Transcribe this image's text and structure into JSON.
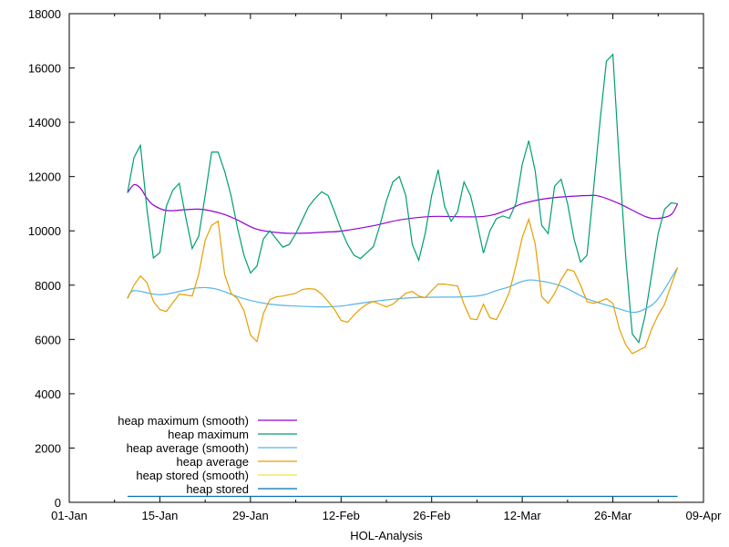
{
  "chart_data": {
    "type": "line",
    "title": "",
    "xlabel": "HOL-Analysis",
    "ylabel": "",
    "ylim": [
      0,
      18000
    ],
    "xlim": [
      "01-Jan",
      "09-Apr"
    ],
    "yticks": [
      "0",
      "2000",
      "4000",
      "6000",
      "8000",
      "10000",
      "12000",
      "14000",
      "16000",
      "18000"
    ],
    "xticks": [
      "01-Jan",
      "15-Jan",
      "29-Jan",
      "12-Feb",
      "26-Feb",
      "12-Mar",
      "26-Mar",
      "09-Apr"
    ],
    "grid": false,
    "legend_position": "bottom-left",
    "x": [
      "10-Jan",
      "11-Jan",
      "12-Jan",
      "13-Jan",
      "14-Jan",
      "15-Jan",
      "16-Jan",
      "17-Jan",
      "18-Jan",
      "19-Jan",
      "20-Jan",
      "21-Jan",
      "22-Jan",
      "23-Jan",
      "24-Jan",
      "25-Jan",
      "26-Jan",
      "27-Jan",
      "28-Jan",
      "29-Jan",
      "30-Jan",
      "31-Jan",
      "01-Feb",
      "02-Feb",
      "03-Feb",
      "04-Feb",
      "05-Feb",
      "06-Feb",
      "07-Feb",
      "08-Feb",
      "09-Feb",
      "10-Feb",
      "11-Feb",
      "12-Feb",
      "13-Feb",
      "14-Feb",
      "15-Feb",
      "16-Feb",
      "17-Feb",
      "18-Feb",
      "19-Feb",
      "20-Feb",
      "21-Feb",
      "22-Feb",
      "23-Feb",
      "24-Feb",
      "25-Feb",
      "26-Feb",
      "27-Feb",
      "28-Feb",
      "01-Mar",
      "02-Mar",
      "03-Mar",
      "04-Mar",
      "05-Mar",
      "06-Mar",
      "07-Mar",
      "08-Mar",
      "09-Mar",
      "10-Mar",
      "11-Mar",
      "12-Mar",
      "13-Mar",
      "14-Mar",
      "15-Mar",
      "16-Mar",
      "17-Mar",
      "18-Mar",
      "19-Mar",
      "20-Mar",
      "21-Mar",
      "22-Mar",
      "23-Mar",
      "24-Mar",
      "25-Mar",
      "26-Mar",
      "27-Mar",
      "28-Mar",
      "29-Mar",
      "30-Mar",
      "31-Mar",
      "01-Apr",
      "02-Apr",
      "03-Apr",
      "04-Apr",
      "05-Apr"
    ],
    "series": [
      {
        "name": "heap maximum (smooth)",
        "color": "#9400d3",
        "smooth": true,
        "points": [
          [
            "10-Jan",
            11400
          ],
          [
            "11-Jan",
            11700
          ],
          [
            "12-Jan",
            11570
          ],
          [
            "13-Jan",
            11200
          ],
          [
            "14-Jan",
            10950
          ],
          [
            "16-Jan",
            10750
          ],
          [
            "19-Jan",
            10780
          ],
          [
            "21-Jan",
            10800
          ],
          [
            "23-Jan",
            10730
          ],
          [
            "25-Jan",
            10600
          ],
          [
            "27-Jan",
            10400
          ],
          [
            "30-Jan",
            10060
          ],
          [
            "03-Feb",
            9920
          ],
          [
            "07-Feb",
            9920
          ],
          [
            "10-Feb",
            9960
          ],
          [
            "12-Feb",
            9990
          ],
          [
            "17-Feb",
            10190
          ],
          [
            "21-Feb",
            10400
          ],
          [
            "26-Feb",
            10530
          ],
          [
            "06-Mar",
            10530
          ],
          [
            "10-Mar",
            10800
          ],
          [
            "12-Mar",
            11000
          ],
          [
            "16-Mar",
            11200
          ],
          [
            "22-Mar",
            11300
          ],
          [
            "24-Mar",
            11270
          ],
          [
            "27-Mar",
            11000
          ],
          [
            "31-Mar",
            10530
          ],
          [
            "02-Apr",
            10460
          ],
          [
            "04-Apr",
            10600
          ],
          [
            "05-Apr",
            11000
          ]
        ]
      },
      {
        "name": "heap maximum",
        "color": "#009e73",
        "values": [
          11400,
          12700,
          13150,
          10800,
          9000,
          9200,
          10900,
          11500,
          11750,
          10500,
          9350,
          9800,
          11300,
          12900,
          12900,
          12200,
          11300,
          10100,
          9100,
          8450,
          8700,
          9700,
          10000,
          9700,
          9400,
          9500,
          9900,
          10400,
          10900,
          11200,
          11440,
          11300,
          10700,
          10050,
          9500,
          9100,
          8980,
          9200,
          9420,
          10200,
          11100,
          11800,
          12000,
          11300,
          9500,
          8920,
          9900,
          11300,
          12250,
          10900,
          10350,
          10700,
          11800,
          11300,
          10300,
          9180,
          10000,
          10450,
          10550,
          10460,
          11000,
          12450,
          13320,
          12200,
          10200,
          9900,
          11650,
          11900,
          11000,
          9700,
          8850,
          9100,
          11500,
          14000,
          16250,
          16500,
          12500,
          9000,
          6200,
          5890,
          6900,
          8400,
          9900,
          10800,
          11030,
          11000
        ]
      },
      {
        "name": "heap average (smooth)",
        "color": "#56b4e9",
        "smooth": true,
        "points": [
          [
            "10-Jan",
            7540
          ],
          [
            "11-Jan",
            7800
          ],
          [
            "14-Jan",
            7670
          ],
          [
            "16-Jan",
            7670
          ],
          [
            "20-Jan",
            7870
          ],
          [
            "22-Jan",
            7910
          ],
          [
            "24-Jan",
            7840
          ],
          [
            "28-Jan",
            7500
          ],
          [
            "01-Feb",
            7300
          ],
          [
            "05-Feb",
            7230
          ],
          [
            "09-Feb",
            7200
          ],
          [
            "12-Feb",
            7230
          ],
          [
            "17-Feb",
            7400
          ],
          [
            "23-Feb",
            7540
          ],
          [
            "03-Mar",
            7570
          ],
          [
            "06-Mar",
            7640
          ],
          [
            "08-Mar",
            7800
          ],
          [
            "10-Mar",
            7940
          ],
          [
            "12-Mar",
            8140
          ],
          [
            "14-Mar",
            8180
          ],
          [
            "18-Mar",
            7970
          ],
          [
            "22-Mar",
            7500
          ],
          [
            "26-Mar",
            7200
          ],
          [
            "29-Mar",
            7000
          ],
          [
            "31-Mar",
            7130
          ],
          [
            "02-Apr",
            7500
          ],
          [
            "05-Apr",
            8650
          ]
        ]
      },
      {
        "name": "heap average",
        "color": "#e69f00",
        "values": [
          7500,
          8000,
          8340,
          8100,
          7400,
          7100,
          7030,
          7350,
          7670,
          7640,
          7600,
          8400,
          9650,
          10200,
          10360,
          8410,
          7700,
          7500,
          7060,
          6160,
          5920,
          6960,
          7470,
          7570,
          7600,
          7650,
          7700,
          7840,
          7870,
          7850,
          7670,
          7400,
          7100,
          6700,
          6630,
          6900,
          7130,
          7300,
          7400,
          7300,
          7200,
          7300,
          7500,
          7700,
          7770,
          7600,
          7540,
          7800,
          8040,
          8040,
          8000,
          7970,
          7300,
          6760,
          6730,
          7300,
          6800,
          6730,
          7200,
          7740,
          8700,
          9760,
          10430,
          9520,
          7570,
          7330,
          7700,
          8200,
          8580,
          8510,
          8000,
          7400,
          7330,
          7400,
          7500,
          7330,
          6390,
          5800,
          5480,
          5600,
          5720,
          6390,
          6900,
          7300,
          8000,
          8650
        ]
      },
      {
        "name": "heap stored (smooth)",
        "color": "#f0e442",
        "smooth": true,
        "points": [
          [
            "10-Jan",
            220
          ],
          [
            "05-Apr",
            220
          ]
        ]
      },
      {
        "name": "heap stored",
        "color": "#0072b2",
        "points": [
          [
            "10-Jan",
            220
          ],
          [
            "05-Apr",
            220
          ]
        ]
      }
    ]
  }
}
